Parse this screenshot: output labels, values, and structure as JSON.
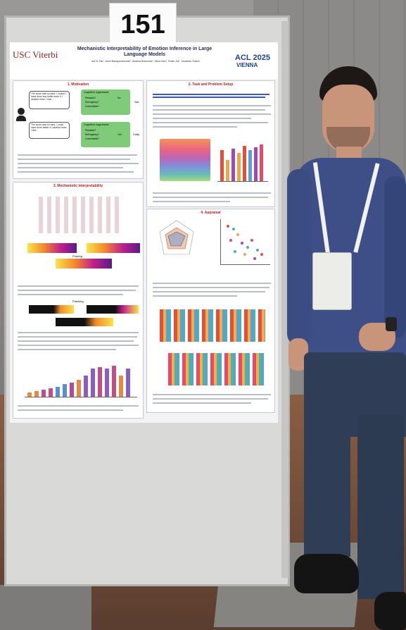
{
  "poster_number": "151",
  "poster": {
    "institution": "USC Viterbi",
    "title": "Mechanistic Interpretability of Emotion Inference in Large Language Models",
    "authors": "Ala N. Tak*, Amin Banayeeanzade*, Anahita Bolourani*, Mina Kian*, Robin Jia*, Jonathan Gratch",
    "conference": "ACL 2025",
    "city": "VIENNA",
    "sections": {
      "motivation": "1. Motivation",
      "mechanistic": "3. Mechanistic Interpretability",
      "task": "2. Task and Problem Setup",
      "appraisal": "4. Appraisal"
    },
    "motivation_items": {
      "speech_a": "The score was so hard. I couldn't have done any better even if I studied more. I had ...",
      "speech_b": "The score was so hard. I could have done better if I studied more. I feel ...",
      "llm_label": "LLM",
      "box_a_title": "Cognitive Appraisals",
      "box_b_title": "Cognitive Appraisals",
      "row_pleasant": "Pleasant?",
      "row_self": "Self-agency?",
      "row_control": "Controllable?",
      "val_no": "No",
      "val_yes": "Yes",
      "outcome_a": "Sad",
      "outcome_b": "Guilty"
    },
    "subheadings": {
      "probing": "Probing",
      "patching": "Patching"
    }
  },
  "colors": {
    "accent_red": "#b01e1e",
    "header_blue": "#1f2a4d",
    "shirt": "#3d4f86",
    "jeans": "#2f3d56"
  }
}
